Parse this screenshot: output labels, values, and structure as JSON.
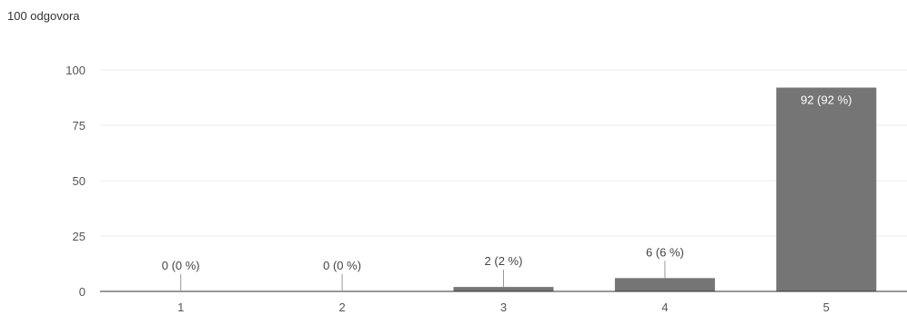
{
  "header": {
    "response_count": "100 odgovora"
  },
  "colors": {
    "bar": "#757575",
    "grid": "#eeeeee",
    "axis": "#333333",
    "label_outside": "#444444",
    "label_inside": "#ffffff",
    "leader": "#999999"
  },
  "chart_data": {
    "type": "bar",
    "categories": [
      "1",
      "2",
      "3",
      "4",
      "5"
    ],
    "values": [
      0,
      0,
      2,
      6,
      92
    ],
    "data_labels": [
      "0 (0 %)",
      "0 (0 %)",
      "2 (2 %)",
      "6 (6 %)",
      "92 (92 %)"
    ],
    "y_ticks": [
      0,
      25,
      50,
      75,
      100
    ],
    "ylim": [
      0,
      100
    ],
    "grid": true,
    "legend": "none"
  }
}
